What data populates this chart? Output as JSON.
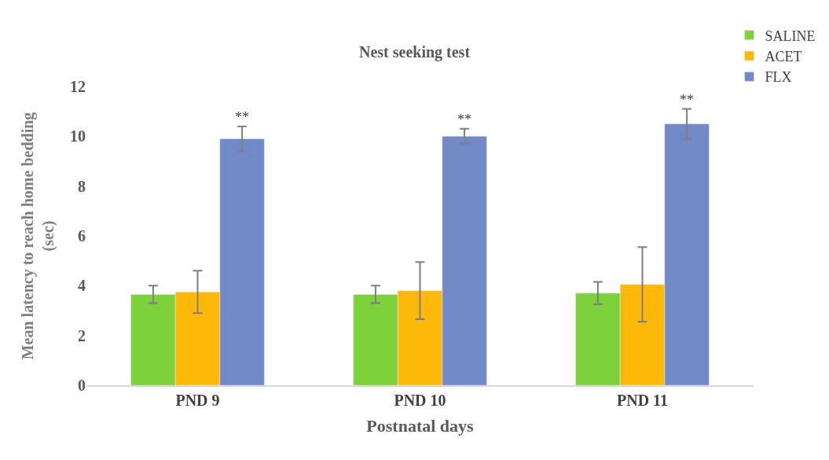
{
  "chart_data": {
    "type": "bar",
    "title": "Nest seeking test",
    "xlabel": "Postnatal days",
    "ylabel": "Mean latency to reach home bedding\n(sec)",
    "categories": [
      "PND 9",
      "PND 10",
      "PND 11"
    ],
    "series": [
      {
        "name": "SALINE",
        "color": "#7fd13b",
        "values": [
          3.65,
          3.65,
          3.7
        ],
        "errors": [
          0.35,
          0.35,
          0.45
        ]
      },
      {
        "name": "ACET",
        "color": "#feb80a",
        "values": [
          3.75,
          3.8,
          4.05
        ],
        "errors": [
          0.85,
          1.15,
          1.5
        ]
      },
      {
        "name": "FLX",
        "color": "#7289c7",
        "values": [
          9.9,
          10.0,
          10.5
        ],
        "errors": [
          0.5,
          0.3,
          0.6
        ]
      }
    ],
    "annotations": [
      "**",
      "**",
      "**"
    ],
    "ylim": [
      0,
      12
    ],
    "yticks": [
      0,
      2,
      4,
      6,
      8,
      10,
      12
    ],
    "legend": "top right"
  }
}
